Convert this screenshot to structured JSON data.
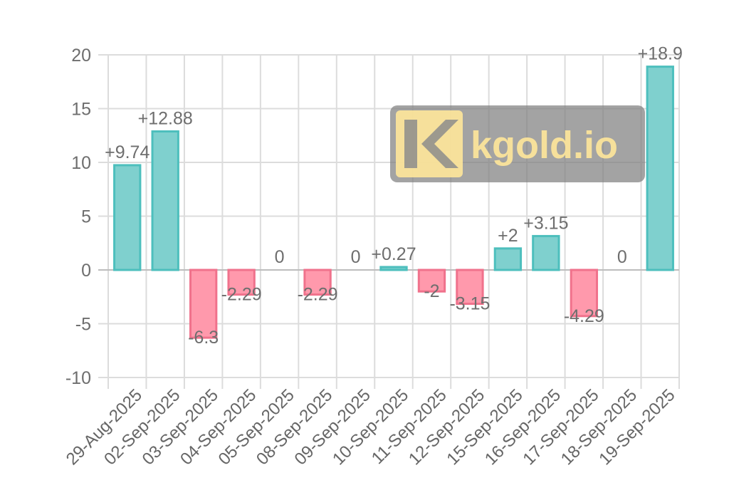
{
  "chart_data": {
    "type": "bar",
    "categories": [
      "29-Aug-2025",
      "02-Sep-2025",
      "03-Sep-2025",
      "04-Sep-2025",
      "05-Sep-2025",
      "08-Sep-2025",
      "09-Sep-2025",
      "10-Sep-2025",
      "11-Sep-2025",
      "12-Sep-2025",
      "15-Sep-2025",
      "16-Sep-2025",
      "17-Sep-2025",
      "18-Sep-2025",
      "19-Sep-2025"
    ],
    "values": [
      9.74,
      12.88,
      -6.3,
      -2.29,
      0,
      -2.29,
      0,
      0.27,
      -2,
      -3.15,
      2,
      3.15,
      -4.29,
      0,
      18.9
    ],
    "data_labels": [
      "+9.74",
      "+12.88",
      "-6.3",
      "-2.29",
      "0",
      "-2.29",
      "0",
      "+0.27",
      "-2",
      "-3.15",
      "+2",
      "+3.15",
      "-4.29",
      "0",
      "+18.9"
    ],
    "y_ticks": [
      20,
      15,
      10,
      5,
      0,
      -5,
      -10
    ],
    "y_tick_labels": [
      "20",
      "15",
      "10",
      "5",
      "0",
      "-5",
      "-10"
    ],
    "ylim": [
      -10,
      20
    ],
    "grid": true,
    "title": "",
    "xlabel": "",
    "ylabel": "",
    "colors": {
      "positive_fill": "#7fd0ce",
      "positive_stroke": "#4dbfbd",
      "negative_fill": "#ff99ac",
      "negative_stroke": "#f0728c"
    }
  },
  "watermark": {
    "text": "kgold.io",
    "logo_icon": "k-logo-icon"
  }
}
